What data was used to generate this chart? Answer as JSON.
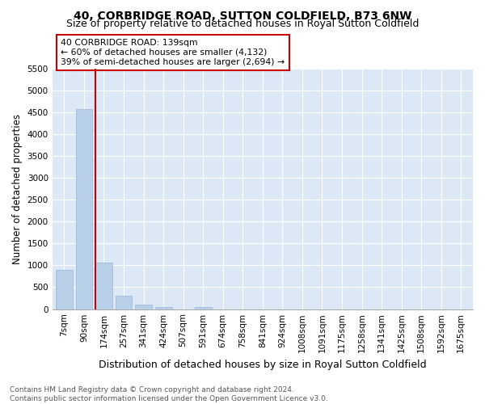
{
  "title": "40, CORBRIDGE ROAD, SUTTON COLDFIELD, B73 6NW",
  "subtitle": "Size of property relative to detached houses in Royal Sutton Coldfield",
  "xlabel": "Distribution of detached houses by size in Royal Sutton Coldfield",
  "ylabel": "Number of detached properties",
  "categories": [
    "7sqm",
    "90sqm",
    "174sqm",
    "257sqm",
    "341sqm",
    "424sqm",
    "507sqm",
    "591sqm",
    "674sqm",
    "758sqm",
    "841sqm",
    "924sqm",
    "1008sqm",
    "1091sqm",
    "1175sqm",
    "1258sqm",
    "1341sqm",
    "1425sqm",
    "1508sqm",
    "1592sqm",
    "1675sqm"
  ],
  "values": [
    900,
    4560,
    1060,
    300,
    95,
    50,
    0,
    55,
    0,
    0,
    0,
    0,
    0,
    0,
    0,
    0,
    0,
    0,
    0,
    0,
    0
  ],
  "bar_color": "#b8cfe8",
  "bar_edge_color": "#9ab5d8",
  "marker_color": "#cc0000",
  "annotation_text": "40 CORBRIDGE ROAD: 139sqm\n← 60% of detached houses are smaller (4,132)\n39% of semi-detached houses are larger (2,694) →",
  "annotation_box_color": "#ffffff",
  "annotation_box_edge": "#cc0000",
  "ylim": [
    0,
    5500
  ],
  "yticks": [
    0,
    500,
    1000,
    1500,
    2000,
    2500,
    3000,
    3500,
    4000,
    4500,
    5000,
    5500
  ],
  "plot_bg_color": "#dce8f5",
  "fig_bg_color": "#ffffff",
  "footer_text": "Contains HM Land Registry data © Crown copyright and database right 2024.\nContains public sector information licensed under the Open Government Licence v3.0.",
  "title_fontsize": 10,
  "subtitle_fontsize": 9,
  "xlabel_fontsize": 9,
  "ylabel_fontsize": 8.5,
  "tick_fontsize": 7.5,
  "footer_fontsize": 6.5
}
